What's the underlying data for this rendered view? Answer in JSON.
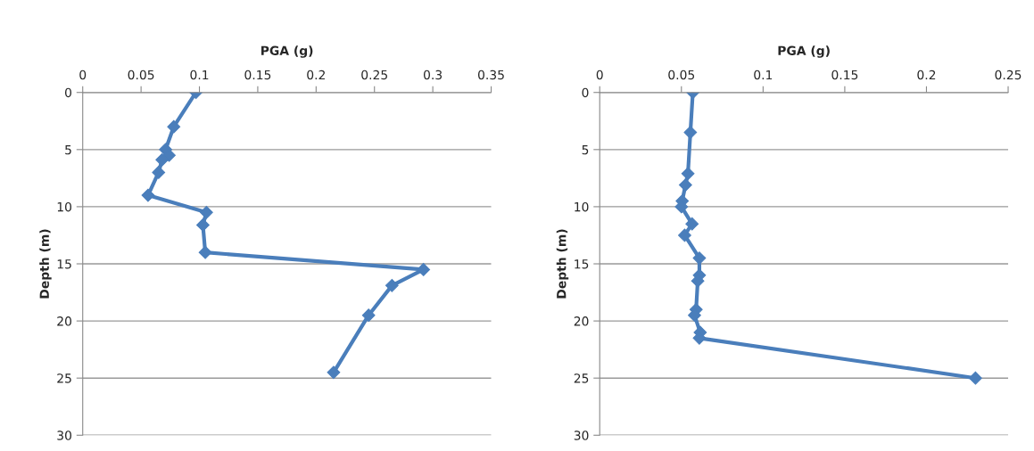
{
  "chart_data": [
    {
      "type": "line",
      "xlabel": "PGA (g)",
      "ylabel": "Depth (m)",
      "marker": "diamond",
      "grid": "y",
      "xlim": [
        0,
        0.35
      ],
      "xticks": [
        0,
        0.05,
        0.1,
        0.15,
        0.2,
        0.25,
        0.3,
        0.35
      ],
      "ylim": [
        30,
        0
      ],
      "yticks": [
        0,
        5,
        10,
        15,
        20,
        25,
        30
      ],
      "series": [
        {
          "color": "#4a7ebb",
          "x": [
            0.097,
            0.078,
            0.071,
            0.074,
            0.068,
            0.065,
            0.056,
            0.106,
            0.103,
            0.105,
            0.292,
            0.265,
            0.245,
            0.215
          ],
          "values": [
            0,
            3.0,
            5.0,
            5.5,
            5.9,
            7.0,
            9.0,
            10.5,
            11.6,
            14.0,
            15.5,
            16.9,
            19.5,
            24.5
          ]
        }
      ]
    },
    {
      "type": "line",
      "xlabel": "PGA (g)",
      "ylabel": "Depth (m)",
      "marker": "diamond",
      "grid": "y",
      "xlim": [
        0,
        0.25
      ],
      "xticks": [
        0,
        0.05,
        0.1,
        0.15,
        0.2,
        0.25
      ],
      "ylim": [
        30,
        0
      ],
      "yticks": [
        0,
        5,
        10,
        15,
        20,
        25,
        30
      ],
      "series": [
        {
          "color": "#4a7ebb",
          "x": [
            0.057,
            0.0555,
            0.054,
            0.0525,
            0.0505,
            0.05,
            0.0565,
            0.052,
            0.061,
            0.061,
            0.06,
            0.059,
            0.058,
            0.0615,
            0.061,
            0.23
          ],
          "values": [
            0,
            3.5,
            7.1,
            8.1,
            9.5,
            10.0,
            11.5,
            12.5,
            14.5,
            16.0,
            16.5,
            19.0,
            19.5,
            21.0,
            21.5,
            25.0
          ]
        }
      ]
    }
  ]
}
